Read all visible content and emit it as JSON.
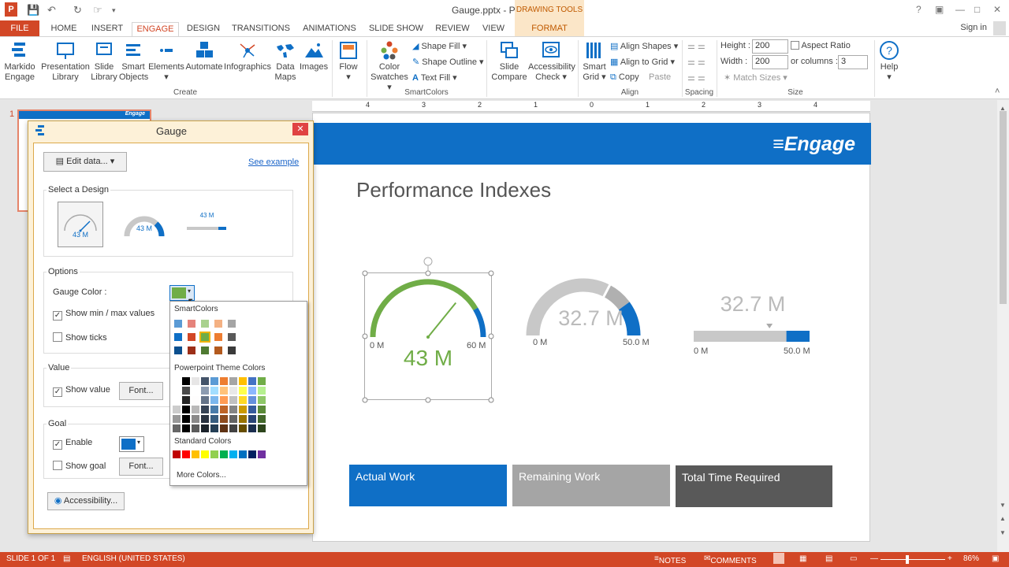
{
  "window": {
    "title": "Gauge.pptx - PowerPoint",
    "contextual_group": "DRAWING TOOLS",
    "signin": "Sign in"
  },
  "tabs": [
    "FILE",
    "HOME",
    "INSERT",
    "ENGAGE",
    "DESIGN",
    "TRANSITIONS",
    "ANIMATIONS",
    "SLIDE SHOW",
    "REVIEW",
    "VIEW",
    "FORMAT"
  ],
  "ribbon": {
    "create": [
      {
        "l1": "Markido",
        "l2": "Engage"
      },
      {
        "l1": "Presentation",
        "l2": "Library"
      },
      {
        "l1": "Slide",
        "l2": "Library"
      },
      {
        "l1": "Smart",
        "l2": "Objects"
      },
      {
        "l1": "Elements",
        "l2": "▾"
      },
      {
        "l1": "Automate",
        "l2": ""
      },
      {
        "l1": "Infographics",
        "l2": ""
      },
      {
        "l1": "Data",
        "l2": "Maps"
      },
      {
        "l1": "Images",
        "l2": ""
      },
      {
        "l1": "Flow",
        "l2": "▾"
      }
    ],
    "smartcolors": {
      "color_l1": "Color",
      "color_l2": "Swatches ▾",
      "shape_fill": "Shape Fill ▾",
      "shape_outline": "Shape Outline ▾",
      "text_fill": "Text Fill ▾"
    },
    "align": {
      "slide_l1": "Slide",
      "slide_l2": "Compare",
      "access_l1": "Accessibility",
      "access_l2": "Check ▾",
      "grid_l1": "Smart",
      "grid_l2": "Grid ▾",
      "align_shapes": "Align Shapes ▾",
      "align_grid": "Align to Grid ▾",
      "copy": "Copy",
      "paste": "Paste"
    },
    "size": {
      "height_label": "Height :",
      "height_value": "200",
      "width_label": "Width :",
      "width_value": "200",
      "aspect": "Aspect Ratio",
      "columns_label": "or columns :",
      "columns_value": "3",
      "match": "Match Sizes ▾"
    },
    "help": "Help",
    "groups": {
      "create": "Create",
      "smartcolors": "SmartColors",
      "align": "Align",
      "spacing": "Spacing",
      "size": "Size"
    }
  },
  "ruler": [
    "4",
    "3",
    "2",
    "1",
    "0",
    "1",
    "2",
    "3",
    "4"
  ],
  "thumbnail": {
    "number": "1",
    "logo": "Engage"
  },
  "slide": {
    "logo": "Engage",
    "title": "Performance Indexes",
    "gauge1": {
      "value_text": "43 M",
      "min": "0 M",
      "max": "60 M",
      "value": 43,
      "max_value": 60,
      "color": "#70ad47"
    },
    "gauge2": {
      "value_text": "32.7 M",
      "min": "0 M",
      "max": "50.0 M",
      "value": 32.7,
      "max_value": 50
    },
    "gauge3": {
      "value_text": "32.7 M",
      "min": "0 M",
      "max": "50.0 M",
      "value": 32.7,
      "max_value": 50
    },
    "boxes": [
      {
        "label": "Actual Work",
        "color": "#0f6fc6"
      },
      {
        "label": "Remaining Work",
        "color": "#a5a5a5"
      },
      {
        "label": "Total Time Required",
        "color": "#595959"
      }
    ]
  },
  "dialog": {
    "title": "Gauge",
    "edit_data": "Edit data...",
    "see_example": "See example",
    "select_design": "Select a Design",
    "design_label": "43 M",
    "options": "Options",
    "gauge_color": "Gauge Color :",
    "show_minmax": "Show min / max values",
    "show_ticks": "Show ticks",
    "value": "Value",
    "show_value": "Show value",
    "font": "Font...",
    "goal": "Goal",
    "enable": "Enable",
    "show_goal": "Show goal",
    "accessibility": "Accessibility..."
  },
  "palette": {
    "smart": "SmartColors",
    "theme": "Powerpoint Theme Colors",
    "standard": "Standard Colors",
    "more": "More Colors...",
    "smart_rows": [
      [
        "#5b9bd5",
        "#e5837b",
        "#a9d18e",
        "#f4b183",
        "#a5a5a5"
      ],
      [
        "#0f6fc6",
        "#d24726",
        "#70ad47",
        "#ed7d31",
        "#595959"
      ],
      [
        "#0b4f8e",
        "#9c2f18",
        "#4f7a32",
        "#b35a1e",
        "#3a3a3a"
      ]
    ],
    "theme_top": [
      "#ffffff",
      "#000000",
      "#e7e6e6",
      "#44546a",
      "#5b9bd5",
      "#ed7d31",
      "#a5a5a5",
      "#ffc000",
      "#4472c4",
      "#70ad47"
    ],
    "standard_colors": [
      "#c00000",
      "#ff0000",
      "#ffc000",
      "#ffff00",
      "#92d050",
      "#00b050",
      "#00b0f0",
      "#0070c0",
      "#002060",
      "#7030a0"
    ]
  },
  "status": {
    "slide": "SLIDE 1 OF 1",
    "language": "ENGLISH (UNITED STATES)",
    "notes": "NOTES",
    "comments": "COMMENTS",
    "zoom": "86%"
  }
}
